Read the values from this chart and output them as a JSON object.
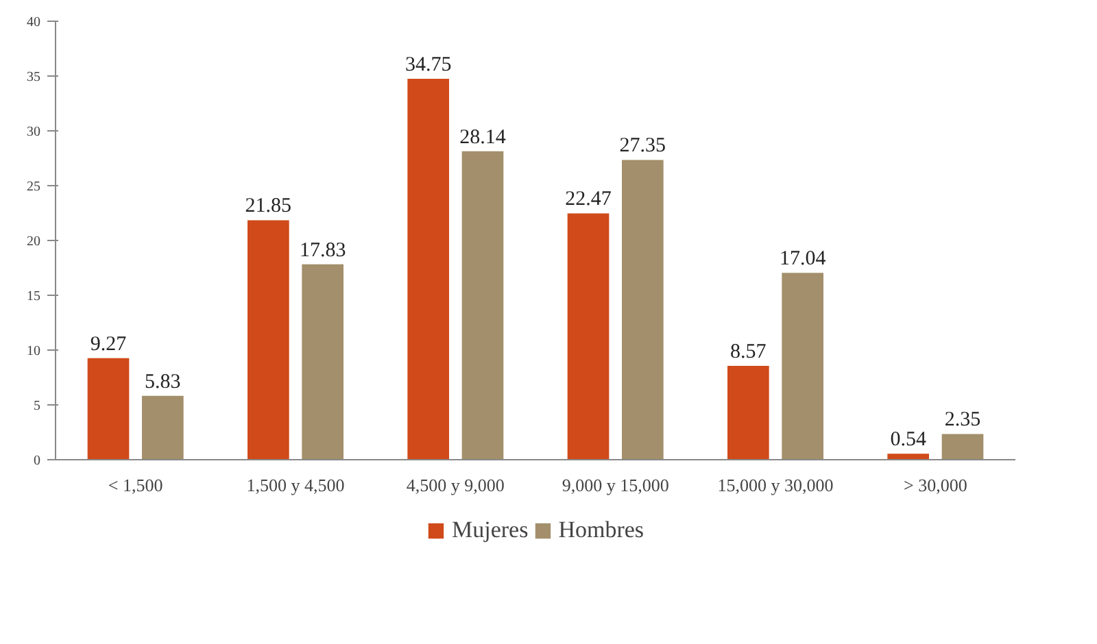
{
  "chart_data": {
    "type": "bar",
    "categories": [
      "< 1,500",
      "1,500 y 4,500",
      "4,500 y 9,000",
      "9,000 y 15,000",
      "15,000 y 30,000",
      "> 30,000"
    ],
    "series": [
      {
        "name": "Mujeres",
        "color": "#d04a1a",
        "values": [
          9.27,
          21.85,
          34.75,
          22.47,
          8.57,
          0.54
        ]
      },
      {
        "name": "Hombres",
        "color": "#a38f6b",
        "values": [
          5.83,
          17.83,
          28.14,
          27.35,
          17.04,
          2.35
        ]
      }
    ],
    "ylim": [
      0,
      40
    ],
    "yticks": [
      0,
      5,
      10,
      15,
      20,
      25,
      30,
      35,
      40
    ],
    "data_labels": true,
    "grid": false,
    "legend": "bottom"
  }
}
